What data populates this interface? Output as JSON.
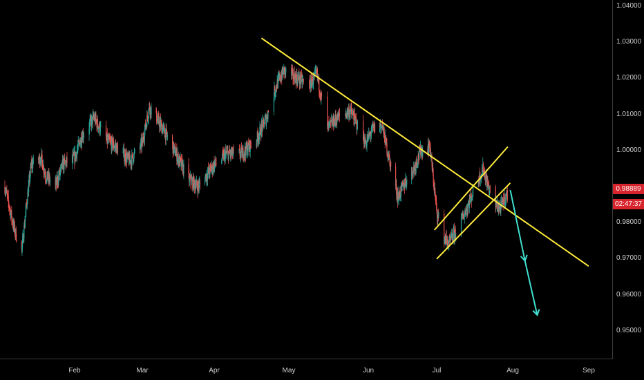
{
  "chart_data": {
    "type": "candlestick",
    "x_ticks": [
      "Feb",
      "Mar",
      "Apr",
      "May",
      "Jun",
      "Jul",
      "Aug",
      "Sep"
    ],
    "y_ticks": [
      "1.04000",
      "1.03000",
      "1.02000",
      "1.01000",
      "1.00000",
      "0.98000",
      "0.97000",
      "0.96000",
      "0.95000"
    ],
    "ylim": [
      0.943,
      1.042
    ],
    "last_price": "0.98889",
    "countdown": "02:47:37",
    "colors": {
      "up": "#26a69a",
      "down": "#ef5350",
      "trendline": "#ffeb3b",
      "arrow": "#40e0d0",
      "price_tag": "#d8242c",
      "background": "#000000"
    },
    "price_path": [
      [
        "2022-01-03",
        0.99
      ],
      [
        "2022-01-05",
        0.984
      ],
      [
        "2022-01-07",
        0.978
      ],
      [
        "2022-01-10",
        0.972
      ],
      [
        "2022-01-12",
        0.985
      ],
      [
        "2022-01-14",
        0.996
      ],
      [
        "2022-01-18",
        0.998
      ],
      [
        "2022-01-20",
        0.993
      ],
      [
        "2022-01-24",
        0.99
      ],
      [
        "2022-01-27",
        0.996
      ],
      [
        "2022-02-01",
        0.998
      ],
      [
        "2022-02-04",
        1.004
      ],
      [
        "2022-02-09",
        1.009
      ],
      [
        "2022-02-14",
        1.003
      ],
      [
        "2022-02-18",
        1.001
      ],
      [
        "2022-02-24",
        0.997
      ],
      [
        "2022-03-01",
        1.002
      ],
      [
        "2022-03-04",
        1.012
      ],
      [
        "2022-03-08",
        1.008
      ],
      [
        "2022-03-14",
        1.001
      ],
      [
        "2022-03-21",
        0.992
      ],
      [
        "2022-03-25",
        0.99
      ],
      [
        "2022-04-01",
        0.996
      ],
      [
        "2022-04-06",
        0.999
      ],
      [
        "2022-04-12",
        0.999
      ],
      [
        "2022-04-18",
        1.003
      ],
      [
        "2022-04-22",
        1.009
      ],
      [
        "2022-04-26",
        1.018
      ],
      [
        "2022-04-29",
        1.022
      ],
      [
        "2022-05-04",
        1.02
      ],
      [
        "2022-05-09",
        1.018
      ],
      [
        "2022-05-12",
        1.021
      ],
      [
        "2022-05-16",
        1.006
      ],
      [
        "2022-05-20",
        1.009
      ],
      [
        "2022-05-25",
        1.011
      ],
      [
        "2022-05-31",
        1.002
      ],
      [
        "2022-06-03",
        1.006
      ],
      [
        "2022-06-07",
        1.007
      ],
      [
        "2022-06-10",
        0.998
      ],
      [
        "2022-06-14",
        0.987
      ],
      [
        "2022-06-17",
        0.991
      ],
      [
        "2022-06-21",
        0.995
      ],
      [
        "2022-06-24",
        1.0
      ],
      [
        "2022-06-28",
        1.001
      ],
      [
        "2022-07-01",
        0.983
      ],
      [
        "2022-07-04",
        0.976
      ],
      [
        "2022-07-06",
        0.974
      ],
      [
        "2022-07-09",
        0.978
      ],
      [
        "2022-07-12",
        0.982
      ],
      [
        "2022-07-15",
        0.987
      ],
      [
        "2022-07-18",
        0.992
      ],
      [
        "2022-07-20",
        0.995
      ],
      [
        "2022-07-22",
        0.99
      ],
      [
        "2022-07-25",
        0.985
      ],
      [
        "2022-07-27",
        0.984
      ],
      [
        "2022-07-29",
        0.987
      ],
      [
        "2022-07-31",
        0.989
      ]
    ],
    "trendlines": [
      {
        "from": [
          "2022-04-20",
          1.031
        ],
        "to": [
          "2022-09-01",
          0.968
        ]
      },
      {
        "from": [
          "2022-07-01",
          0.97
        ],
        "to": [
          "2022-07-31",
          0.991
        ]
      },
      {
        "from": [
          "2022-06-30",
          0.978
        ],
        "to": [
          "2022-07-30",
          1.001
        ]
      }
    ],
    "projection_arrow": [
      [
        "2022-07-31",
        0.989
      ],
      [
        "2022-08-06",
        0.9695
      ],
      [
        "2022-08-11",
        0.9545
      ]
    ],
    "grid": false
  }
}
